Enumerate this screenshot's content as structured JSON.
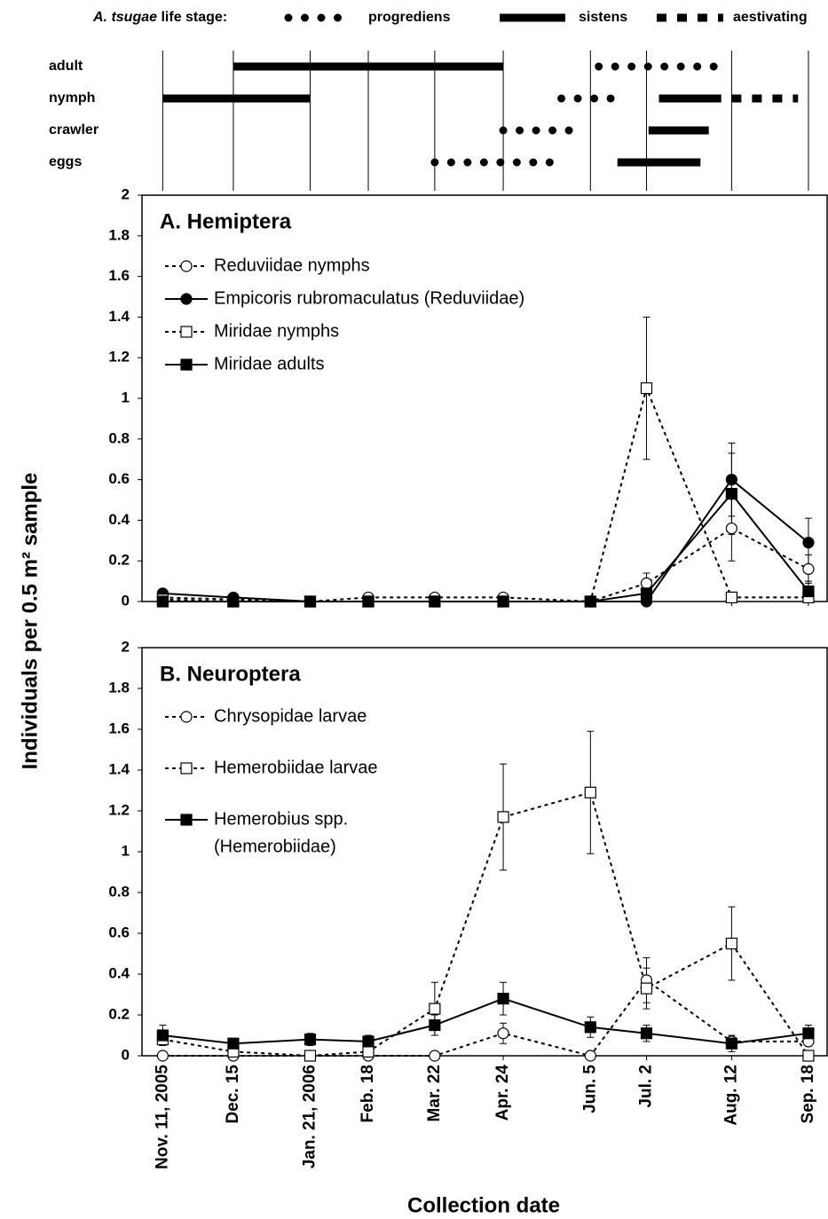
{
  "legend": {
    "title_italic": "A. tsugae",
    "title": "life stage:",
    "forms": [
      {
        "name": "progrediens",
        "style": "dots"
      },
      {
        "name": "sistens",
        "style": "solid"
      },
      {
        "name": "aestivating",
        "style": "dashes"
      }
    ]
  },
  "phenology": {
    "stages": [
      {
        "label": "adult",
        "segments": [
          {
            "form": "sistens",
            "start": "2005-12-15",
            "end": "2006-04-24"
          },
          {
            "form": "progrediens",
            "start": "2006-06-09",
            "end": "2006-08-07"
          }
        ]
      },
      {
        "label": "nymph",
        "segments": [
          {
            "form": "sistens",
            "start": "2005-11-11",
            "end": "2006-01-21"
          },
          {
            "form": "progrediens",
            "start": "2006-05-22",
            "end": "2006-06-21"
          },
          {
            "form": "sistens",
            "start": "2006-07-08",
            "end": "2006-08-07"
          },
          {
            "form": "aestivating",
            "start": "2006-08-12",
            "end": "2006-09-13"
          }
        ]
      },
      {
        "label": "crawler",
        "segments": [
          {
            "form": "progrediens",
            "start": "2006-04-24",
            "end": "2006-06-01"
          },
          {
            "form": "sistens",
            "start": "2006-07-03",
            "end": "2006-08-01"
          }
        ]
      },
      {
        "label": "eggs",
        "segments": [
          {
            "form": "progrediens",
            "start": "2006-03-22",
            "end": "2006-05-19"
          },
          {
            "form": "sistens",
            "start": "2006-06-18",
            "end": "2006-07-28"
          }
        ]
      }
    ]
  },
  "ylabel": "Individuals per 0.5 m² sample",
  "xlabel": "Collection date",
  "chart_data": [
    {
      "type": "line",
      "title": "A. Hemiptera",
      "x": [
        "2005-11-11",
        "2005-12-15",
        "2006-01-21",
        "2006-02-18",
        "2006-03-22",
        "2006-04-24",
        "2006-06-05",
        "2006-07-02",
        "2006-08-12",
        "2006-09-18"
      ],
      "xlim": [
        "2005-11-01",
        "2006-09-27"
      ],
      "ylim": [
        0,
        2
      ],
      "yticks": [
        0,
        0.2,
        0.4,
        0.6,
        0.8,
        1,
        1.2,
        1.4,
        1.6,
        1.8,
        2
      ],
      "series": [
        {
          "name": "Reduviidae nymphs",
          "line": "dotted",
          "marker": "open-circle",
          "color": "#000000",
          "values": [
            0.02,
            0.01,
            0,
            0.02,
            0.02,
            0.02,
            0,
            0.09,
            0.36,
            0.16
          ],
          "errors": [
            null,
            null,
            null,
            null,
            null,
            null,
            null,
            0.05,
            0.16,
            0.07
          ]
        },
        {
          "name": "Empicoris rubromaculatus (Reduviidae)",
          "line": "solid",
          "marker": "filled-circle",
          "color": "#000000",
          "values": [
            0.04,
            0.02,
            0,
            0,
            0,
            0,
            0,
            0,
            0.6,
            0.29
          ],
          "errors": [
            null,
            null,
            null,
            null,
            null,
            null,
            null,
            null,
            0.18,
            0.12
          ]
        },
        {
          "name": "Miridae nymphs",
          "line": "dotted",
          "marker": "open-square",
          "color": "#000000",
          "values": [
            0.01,
            0,
            0,
            0,
            0,
            0,
            0,
            1.05,
            0.02,
            0.02
          ],
          "errors": [
            null,
            null,
            null,
            null,
            null,
            null,
            null,
            0.35,
            null,
            null
          ]
        },
        {
          "name": "Miridae adults",
          "line": "solid",
          "marker": "filled-square",
          "color": "#000000",
          "values": [
            0,
            0,
            0,
            0,
            0,
            0,
            0,
            0.04,
            0.53,
            0.05
          ],
          "errors": [
            null,
            null,
            null,
            null,
            null,
            null,
            null,
            0.03,
            0.2,
            0.05
          ]
        }
      ]
    },
    {
      "type": "line",
      "title": "B. Neuroptera",
      "x": [
        "2005-11-11",
        "2005-12-15",
        "2006-01-21",
        "2006-02-18",
        "2006-03-22",
        "2006-04-24",
        "2006-06-05",
        "2006-07-02",
        "2006-08-12",
        "2006-09-18"
      ],
      "xticks": [
        {
          "value": "2005-11-11",
          "label": "Nov. 11, 2005"
        },
        {
          "value": "2005-12-15",
          "label": "Dec. 15"
        },
        {
          "value": "2006-01-21",
          "label": "Jan. 21, 2006"
        },
        {
          "value": "2006-02-18",
          "label": "Feb. 18"
        },
        {
          "value": "2006-03-22",
          "label": "Mar. 22"
        },
        {
          "value": "2006-04-24",
          "label": "Apr. 24"
        },
        {
          "value": "2006-06-05",
          "label": "Jun. 5"
        },
        {
          "value": "2006-07-02",
          "label": "Jul. 2"
        },
        {
          "value": "2006-08-12",
          "label": "Aug. 12"
        },
        {
          "value": "2006-09-18",
          "label": "Sep. 18"
        }
      ],
      "xlim": [
        "2005-11-01",
        "2006-09-27"
      ],
      "ylim": [
        0,
        2
      ],
      "yticks": [
        0,
        0.2,
        0.4,
        0.6,
        0.8,
        1,
        1.2,
        1.4,
        1.6,
        1.8,
        2
      ],
      "series": [
        {
          "name": "Chrysopidae larvae",
          "line": "dotted",
          "marker": "open-circle",
          "color": "#000000",
          "values": [
            0,
            0,
            0,
            0,
            0,
            0.11,
            0,
            0.37,
            0.07,
            0.07
          ],
          "errors": [
            null,
            null,
            null,
            null,
            null,
            0.05,
            null,
            0.11,
            0.03,
            null
          ]
        },
        {
          "name": "Hemerobiidae larvae",
          "line": "dotted",
          "marker": "open-square",
          "color": "#000000",
          "values": [
            0.08,
            0.02,
            0,
            0.02,
            0.23,
            1.17,
            1.29,
            0.33,
            0.55,
            0
          ],
          "errors": [
            null,
            null,
            null,
            null,
            0.13,
            0.26,
            0.3,
            0.1,
            0.18,
            null
          ]
        },
        {
          "name": [
            "Hemerobius spp.",
            "(Hemerobiidae)"
          ],
          "line": "solid",
          "marker": "filled-square",
          "color": "#000000",
          "values": [
            0.1,
            0.06,
            0.08,
            0.07,
            0.15,
            0.28,
            0.14,
            0.11,
            0.06,
            0.11
          ],
          "errors": [
            0.05,
            0.02,
            0.03,
            0.03,
            0.05,
            0.08,
            0.05,
            0.04,
            0.04,
            0.04
          ]
        }
      ]
    }
  ]
}
